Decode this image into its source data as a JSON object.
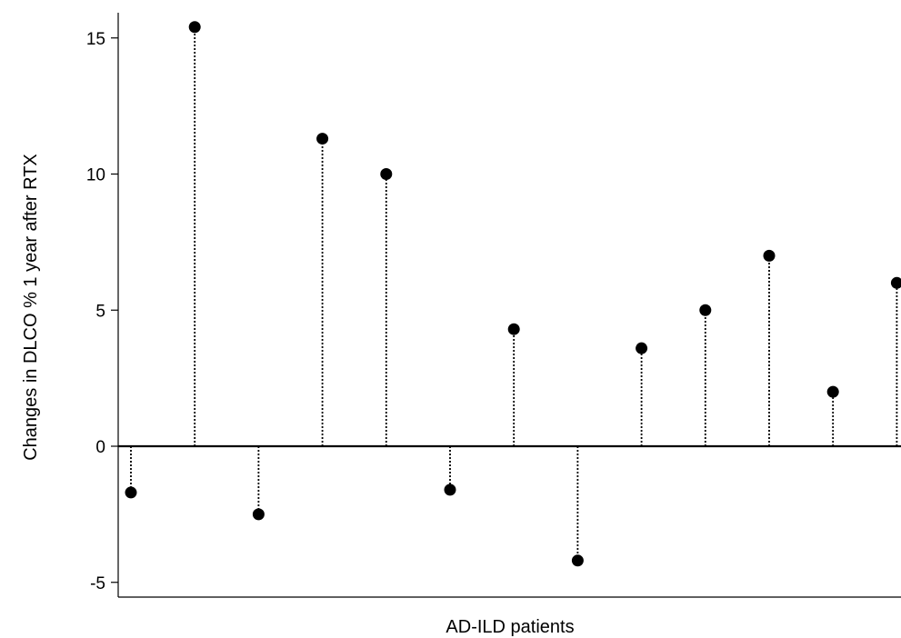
{
  "chart_data": {
    "type": "scatter",
    "style": "lollipop-dotted-stems",
    "xlabel": "AD-ILD patients",
    "ylabel": "Changes in DLCO % 1 year after RTX",
    "ylim": [
      -5.5,
      16
    ],
    "yticks": [
      15,
      10,
      5,
      0,
      -5
    ],
    "ytick_labels": [
      "15",
      "10",
      "5",
      "0",
      "-5"
    ],
    "baseline": 0,
    "x": [
      1,
      2,
      3,
      4,
      5,
      6,
      7,
      8,
      9,
      10,
      11,
      12,
      13
    ],
    "values": [
      -1.7,
      15.4,
      -2.5,
      11.3,
      10.0,
      -1.6,
      4.3,
      -4.2,
      3.6,
      5.0,
      7.0,
      2.0,
      6.0
    ],
    "marker_color": "#000000",
    "grid": false
  }
}
